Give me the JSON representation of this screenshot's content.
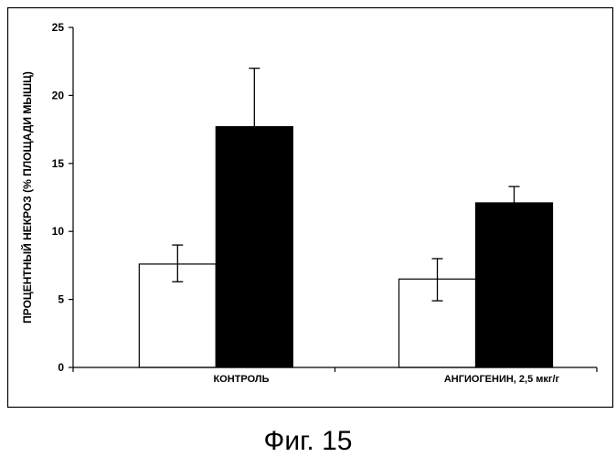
{
  "caption": "Фиг. 15",
  "chart_data": {
    "type": "bar",
    "title": "",
    "xlabel": "",
    "ylabel": "ПРОЦЕНТНЫЙ НЕКРОЗ (% ПЛОЩАДИ МЫШЦ)",
    "ylim": [
      0,
      25
    ],
    "yticks": [
      "0",
      "5",
      "10",
      "15",
      "20",
      "25"
    ],
    "grid": false,
    "legend": "none",
    "categories": [
      "КОНТРОЛЬ",
      "АНГИОГЕНИН, 2,5 мкг/г"
    ],
    "series": [
      {
        "color": "#ffffff",
        "values": [
          7.6,
          6.5
        ],
        "error_low": [
          6.3,
          4.9
        ],
        "error_high": [
          9.0,
          8.0
        ]
      },
      {
        "color": "#000000",
        "values": [
          17.7,
          12.1
        ],
        "error_low": [
          17.7,
          12.1
        ],
        "error_high": [
          22.0,
          13.3
        ]
      }
    ]
  }
}
